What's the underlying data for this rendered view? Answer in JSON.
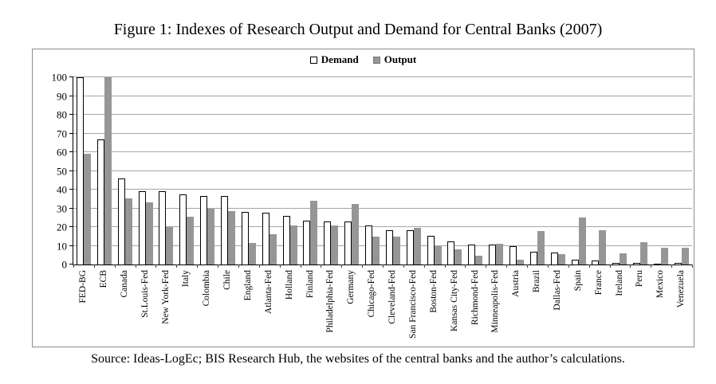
{
  "title": "Figure 1: Indexes of Research Output and Demand for Central Banks (2007)",
  "source": "Source: Ideas-LogEc; BIS Research Hub, the websites of the central banks and the author’s calculations.",
  "colors": {
    "demand_fill": "#ffffff",
    "demand_border": "#000000",
    "output_fill": "#969696",
    "gridline": "#a6a6a6",
    "axis": "#000000",
    "frame_border": "#8c8c8c",
    "background": "#ffffff"
  },
  "chart_data": {
    "type": "bar",
    "title": "Figure 1: Indexes of Research Output and Demand for Central Banks (2007)",
    "xlabel": "",
    "ylabel": "",
    "ylim": [
      0,
      100
    ],
    "ytick_step": 10,
    "grid": "horizontal",
    "legend_position": "top-center",
    "x_label_rotation": 90,
    "categories": [
      "FED-BG",
      "ECB",
      "Canada",
      "St.Louis-Fed",
      "New York-Fed",
      "Italy",
      "Colombia",
      "Chile",
      "England",
      "Atlanta-Fed",
      "Holland",
      "Finland",
      "Philadelphia-Fed",
      "Germany",
      "Chicago-Fed",
      "Cleveland-Fed",
      "San Francisco-Fed",
      "Boston-Fed",
      "Kansas City-Fed",
      "Richmond-Fed",
      "Minneapolis-Fed",
      "Austria",
      "Brazil",
      "Dallas-Fed",
      "Spain",
      "France",
      "Ireland",
      "Peru",
      "Mexico",
      "Venezuela"
    ],
    "series": [
      {
        "name": "Demand",
        "fill": "#ffffff",
        "border": "#000000",
        "values": [
          100,
          67,
          46,
          39,
          39,
          37.5,
          36.5,
          36.5,
          28,
          27.5,
          26,
          23.5,
          23,
          23,
          21,
          18.5,
          18.5,
          15.5,
          12.5,
          10.5,
          10.5,
          10,
          7,
          6.5,
          2.5,
          2,
          1,
          1,
          0.5,
          1
        ]
      },
      {
        "name": "Output",
        "fill": "#969696",
        "border": "#969696",
        "values": [
          59,
          100,
          35.5,
          33,
          20,
          25.5,
          30,
          28.5,
          11.5,
          16,
          21,
          34,
          21,
          32.5,
          15,
          15,
          19.5,
          10,
          8,
          4.5,
          11,
          2.5,
          18,
          5.5,
          25,
          18.5,
          6,
          12,
          9,
          9
        ]
      }
    ]
  }
}
